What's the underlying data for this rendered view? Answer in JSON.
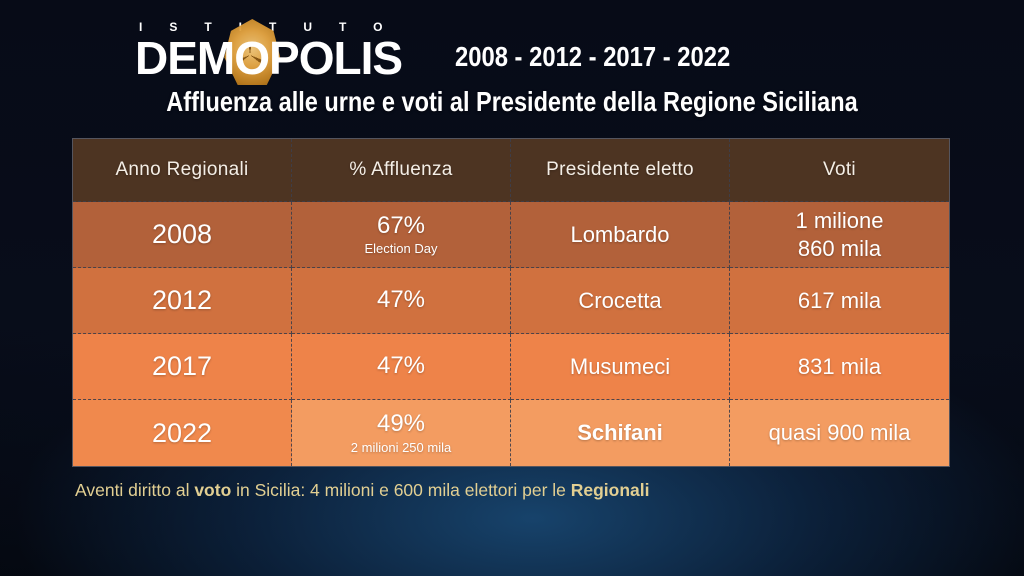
{
  "brand": {
    "institute": "ISTITUTO",
    "name_pre": "DEM",
    "name_o": "O",
    "name_post": "POLIS"
  },
  "heading": {
    "years": "2008 - 2012 - 2017 - 2022",
    "title": "Affluenza alle urne e voti al Presidente della Regione Siciliana"
  },
  "table": {
    "columns": [
      "Anno Regionali",
      "% Affluenza",
      "Presidente eletto",
      "Voti"
    ],
    "rows": [
      {
        "year": "2008",
        "affluenza": "67%",
        "affluenza_note": "Election Day",
        "presidente": "Lombardo",
        "voti_line1": "1 milione",
        "voti_line2": "860 mila"
      },
      {
        "year": "2012",
        "affluenza": "47%",
        "presidente": "Crocetta",
        "voti_line1": "617 mila"
      },
      {
        "year": "2017",
        "affluenza": "47%",
        "presidente": "Musumeci",
        "voti_line1": "831 mila"
      },
      {
        "year": "2022",
        "affluenza": "49%",
        "affluenza_note": "2 milioni 250 mila",
        "presidente": "Schifani",
        "voti_line1": "quasi 900 mila"
      }
    ]
  },
  "footnote": {
    "part1": "Aventi diritto al ",
    "bold1": "voto",
    "part2": " in Sicilia: 4 milioni e 600 mila elettori per le ",
    "bold2": "Regionali"
  },
  "colors": {
    "header_bg": "#4d3422",
    "row_2008_bg": "#b2613a",
    "row_2012_bg": "#d0713f",
    "row_2017_bg": "#ee8349",
    "row_2022_year_bg": "#f0894d",
    "row_2022_cells_bg": "#f39c61",
    "footnote_text": "#e2cf92",
    "logo_gold": "#e8a844"
  },
  "chart_data": {
    "type": "table",
    "title": "Affluenza alle urne e voti al Presidente della Regione Siciliana",
    "subtitle": "2008 - 2012 - 2017 - 2022",
    "source": "Istituto Demopolis",
    "columns": [
      "Anno Regionali",
      "% Affluenza",
      "Presidente eletto",
      "Voti"
    ],
    "rows": [
      [
        "2008",
        "67% (Election Day)",
        "Lombardo",
        "1 milione 860 mila"
      ],
      [
        "2012",
        "47%",
        "Crocetta",
        "617 mila"
      ],
      [
        "2017",
        "47%",
        "Musumeci",
        "831 mila"
      ],
      [
        "2022",
        "49% (2 milioni 250 mila)",
        "Schifani",
        "quasi 900 mila"
      ]
    ],
    "affluenza_percent": [
      67,
      47,
      47,
      49
    ],
    "note": "Aventi diritto al voto in Sicilia: 4 milioni e 600 mila elettori per le Regionali"
  }
}
